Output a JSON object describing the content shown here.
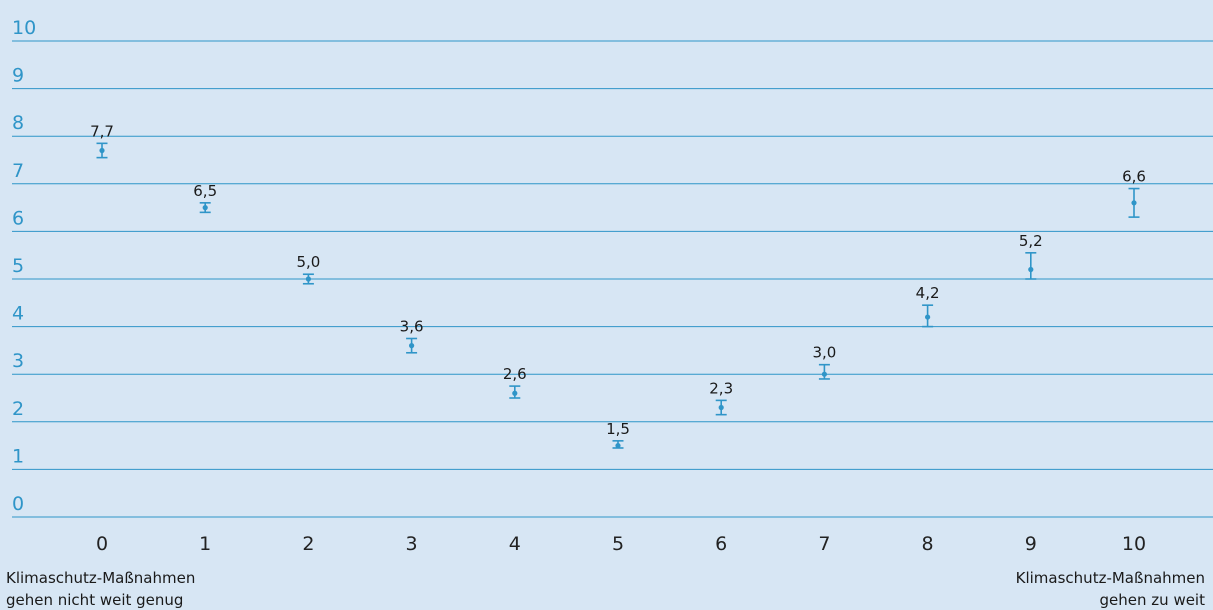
{
  "chart_data": {
    "type": "scatter",
    "title": "",
    "xlabel": "",
    "ylabel": "",
    "x": [
      0,
      1,
      2,
      3,
      4,
      5,
      6,
      7,
      8,
      9,
      10
    ],
    "ylim": [
      0,
      10
    ],
    "yticks": [
      0,
      1,
      2,
      3,
      4,
      5,
      6,
      7,
      8,
      9,
      10
    ],
    "grid": true,
    "series": [
      {
        "values": [
          7.7,
          6.5,
          5.0,
          3.6,
          2.6,
          1.5,
          2.3,
          3.0,
          4.2,
          5.2,
          6.6
        ],
        "value_labels": [
          "7,7",
          "6,5",
          "5,0",
          "3,6",
          "2,6",
          "1,5",
          "2,3",
          "3,0",
          "4,2",
          "5,2",
          "6,6"
        ],
        "error_low": [
          7.55,
          6.4,
          4.9,
          3.45,
          2.5,
          1.45,
          2.15,
          2.9,
          4.0,
          5.0,
          6.3
        ],
        "error_high": [
          7.85,
          6.6,
          5.1,
          3.75,
          2.75,
          1.6,
          2.45,
          3.2,
          4.45,
          5.55,
          6.9
        ]
      }
    ],
    "x_left_note": [
      "Klimaschutz-Maßnahmen",
      "gehen nicht weit genug"
    ],
    "x_right_note": [
      "Klimaschutz-Maßnahmen",
      "gehen zu weit"
    ],
    "colors": {
      "background": "#d7e6f4",
      "grid": "#2f95c8",
      "marker": "#2f95c8",
      "ytick": "#2f95c8",
      "text": "#1a1a1a"
    }
  }
}
